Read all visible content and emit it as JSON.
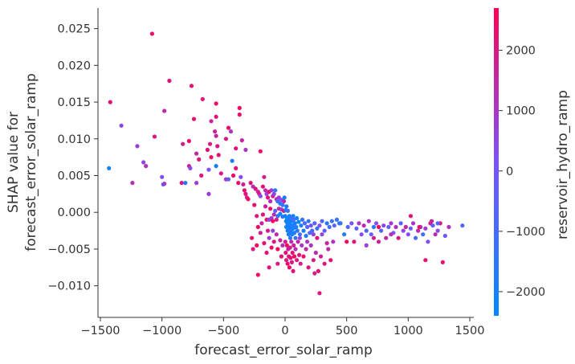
{
  "chart_data": {
    "type": "scatter",
    "title": "",
    "xlabel": "forecast_error_solar_ramp",
    "ylabel_lines": [
      "SHAP value for",
      "forecast_error_solar_ramp"
    ],
    "colorbar_label": "reservoir_hydro_ramp",
    "xlim": [
      -1500,
      1500
    ],
    "ylim": [
      -0.0143,
      0.0278
    ],
    "x_ticks": [
      -1500,
      -1000,
      -500,
      0,
      500,
      1000,
      1500
    ],
    "x_tick_labels": [
      "−1500",
      "−1000",
      "−500",
      "0",
      "500",
      "1000",
      "1500"
    ],
    "y_ticks": [
      -0.01,
      -0.005,
      0.0,
      0.005,
      0.01,
      0.015,
      0.02,
      0.025
    ],
    "y_tick_labels": [
      "−0.010",
      "−0.005",
      "0.000",
      "0.005",
      "0.010",
      "0.015",
      "0.020",
      "0.025"
    ],
    "color_range": [
      -2400,
      2700
    ],
    "color_ticks": [
      -2000,
      -1000,
      0,
      1000,
      2000
    ],
    "color_tick_labels": [
      "−2000",
      "−1000",
      "0",
      "1000",
      "2000"
    ],
    "colors": {
      "low": "#008afb",
      "mid": "#7c52ff",
      "high": "#ff0052",
      "spine": "#333333"
    },
    "grid": false,
    "points": [
      [
        -1080,
        0.0243,
        2300
      ],
      [
        -940,
        0.0179,
        2100
      ],
      [
        -760,
        0.0172,
        2200
      ],
      [
        -670,
        0.0154,
        2000
      ],
      [
        -1420,
        0.015,
        2200
      ],
      [
        -980,
        0.0138,
        1400
      ],
      [
        -560,
        0.0148,
        2400
      ],
      [
        -370,
        0.0142,
        2500
      ],
      [
        -1330,
        0.0118,
        600
      ],
      [
        -1060,
        0.0103,
        2000
      ],
      [
        -740,
        0.0127,
        2300
      ],
      [
        -600,
        0.0124,
        1500
      ],
      [
        -560,
        0.013,
        2200
      ],
      [
        -460,
        0.0115,
        2500
      ],
      [
        -370,
        0.0133,
        2300
      ],
      [
        -1200,
        0.009,
        800
      ],
      [
        -1150,
        0.0068,
        600
      ],
      [
        -1130,
        0.0063,
        1200
      ],
      [
        -1000,
        0.0048,
        200
      ],
      [
        -830,
        0.0093,
        1800
      ],
      [
        -780,
        0.0097,
        2300
      ],
      [
        -720,
        0.008,
        1500
      ],
      [
        -700,
        0.0072,
        2100
      ],
      [
        -630,
        0.0085,
        2300
      ],
      [
        -610,
        0.0093,
        2000
      ],
      [
        -570,
        0.011,
        1700
      ],
      [
        -560,
        0.0104,
        1600
      ],
      [
        -550,
        0.009,
        2000
      ],
      [
        -540,
        0.0078,
        2200
      ],
      [
        -480,
        0.01,
        1900
      ],
      [
        -440,
        0.011,
        1000
      ],
      [
        -400,
        0.0087,
        2100
      ],
      [
        -350,
        0.0098,
        1500
      ],
      [
        -320,
        0.0085,
        1000
      ],
      [
        -200,
        0.0083,
        2400
      ],
      [
        -1430,
        0.006,
        -2100
      ],
      [
        -1240,
        0.004,
        1200
      ],
      [
        -990,
        0.0038,
        -800
      ],
      [
        -980,
        0.0039,
        900
      ],
      [
        -840,
        0.004,
        2000
      ],
      [
        -810,
        0.004,
        -1600
      ],
      [
        -780,
        0.0063,
        1700
      ],
      [
        -770,
        0.006,
        400
      ],
      [
        -720,
        0.004,
        900
      ],
      [
        -680,
        0.005,
        2100
      ],
      [
        -620,
        0.0058,
        200
      ],
      [
        -620,
        0.0025,
        800
      ],
      [
        -600,
        0.0075,
        2400
      ],
      [
        -560,
        0.0063,
        -2000
      ],
      [
        -520,
        0.0053,
        2000
      ],
      [
        -480,
        0.0045,
        1100
      ],
      [
        -460,
        0.0045,
        -500
      ],
      [
        -430,
        0.007,
        -1800
      ],
      [
        -420,
        0.005,
        2500
      ],
      [
        -400,
        0.006,
        2200
      ],
      [
        -380,
        0.004,
        2300
      ],
      [
        -360,
        0.0048,
        300
      ],
      [
        -340,
        0.0038,
        1600
      ],
      [
        -330,
        0.003,
        2400
      ],
      [
        -320,
        0.0025,
        2100
      ],
      [
        -310,
        0.002,
        1800
      ],
      [
        -300,
        0.0018,
        2500
      ],
      [
        -280,
        0.004,
        2200
      ],
      [
        -260,
        0.0035,
        1200
      ],
      [
        -240,
        0.0032,
        2100
      ],
      [
        -220,
        0.0028,
        1600
      ],
      [
        -210,
        0.0025,
        1900
      ],
      [
        -200,
        0.0022,
        500
      ],
      [
        -180,
        0.0035,
        2200
      ],
      [
        -170,
        0.0048,
        1800
      ],
      [
        -160,
        0.003,
        1400
      ],
      [
        -150,
        0.0025,
        700
      ],
      [
        -140,
        0.002,
        2100
      ],
      [
        -130,
        0.0028,
        2300
      ],
      [
        -120,
        0.0015,
        1200
      ],
      [
        -110,
        0.003,
        700
      ],
      [
        -100,
        0.0022,
        1800
      ],
      [
        -90,
        0.0025,
        600
      ],
      [
        -80,
        0.003,
        -1400
      ],
      [
        -70,
        0.0018,
        1200
      ],
      [
        -60,
        0.0015,
        -900
      ],
      [
        -50,
        0.002,
        900
      ],
      [
        -40,
        0.0012,
        -1800
      ],
      [
        -30,
        0.0017,
        300
      ],
      [
        -20,
        0.001,
        -1300
      ],
      [
        -10,
        0.0015,
        1500
      ],
      [
        -5,
        0.002,
        -2000
      ],
      [
        -250,
        0.001,
        2200
      ],
      [
        -230,
        -0.0005,
        2000
      ],
      [
        -220,
        -0.002,
        2400
      ],
      [
        -190,
        -0.0015,
        1500
      ],
      [
        -180,
        -0.0003,
        2100
      ],
      [
        -160,
        0.0008,
        1700
      ],
      [
        -150,
        -0.001,
        2300
      ],
      [
        -140,
        -0.0025,
        1900
      ],
      [
        -130,
        -0.001,
        600
      ],
      [
        -120,
        0.0005,
        2300
      ],
      [
        -110,
        -0.0008,
        1000
      ],
      [
        -100,
        -0.0012,
        2500
      ],
      [
        -90,
        -0.0003,
        1300
      ],
      [
        -80,
        0.0002,
        -400
      ],
      [
        -70,
        -0.001,
        2000
      ],
      [
        -60,
        -0.0005,
        -1100
      ],
      [
        -50,
        0.0005,
        1600
      ],
      [
        -40,
        -0.0002,
        -2000
      ],
      [
        -30,
        0.0004,
        800
      ],
      [
        -20,
        -0.0006,
        -1600
      ],
      [
        -10,
        0.0002,
        2200
      ],
      [
        -270,
        -0.0035,
        2200
      ],
      [
        -260,
        -0.005,
        2000
      ],
      [
        -230,
        -0.0045,
        2500
      ],
      [
        -200,
        -0.0028,
        1800
      ],
      [
        -170,
        -0.0042,
        2300
      ],
      [
        -150,
        -0.0055,
        2100
      ],
      [
        -130,
        -0.0035,
        900
      ],
      [
        -110,
        -0.0048,
        2400
      ],
      [
        -100,
        -0.0025,
        700
      ],
      [
        -90,
        -0.004,
        2000
      ],
      [
        -70,
        -0.003,
        1400
      ],
      [
        -60,
        -0.005,
        2500
      ],
      [
        -40,
        -0.0038,
        1700
      ],
      [
        -30,
        -0.006,
        2200
      ],
      [
        -20,
        -0.0045,
        1200
      ],
      [
        -130,
        -0.0075,
        2100
      ],
      [
        -60,
        -0.007,
        1900
      ],
      [
        -220,
        -0.0085,
        2300
      ],
      [
        0,
        -0.0005,
        -2000
      ],
      [
        5,
        0.0003,
        -2200
      ],
      [
        8,
        -0.0012,
        -1900
      ],
      [
        10,
        -0.002,
        -2100
      ],
      [
        12,
        0.0008,
        -1500
      ],
      [
        15,
        -0.0008,
        -2300
      ],
      [
        18,
        -0.0015,
        -1800
      ],
      [
        20,
        -0.0025,
        -2000
      ],
      [
        22,
        0.0002,
        -1200
      ],
      [
        25,
        -0.0018,
        -2200
      ],
      [
        28,
        -0.003,
        -1700
      ],
      [
        30,
        -0.001,
        -2000
      ],
      [
        32,
        -0.0022,
        -1400
      ],
      [
        35,
        -0.0005,
        -2100
      ],
      [
        38,
        -0.0028,
        -1900
      ],
      [
        40,
        -0.0015,
        -2300
      ],
      [
        42,
        -0.0035,
        -1600
      ],
      [
        45,
        -0.002,
        -2000
      ],
      [
        48,
        -0.0008,
        -1100
      ],
      [
        50,
        -0.0025,
        -1800
      ],
      [
        55,
        -0.0012,
        -2200
      ],
      [
        58,
        -0.003,
        -2000
      ],
      [
        60,
        -0.0018,
        -1500
      ],
      [
        65,
        -0.0005,
        -1900
      ],
      [
        68,
        -0.0022,
        -2100
      ],
      [
        70,
        -0.001,
        -700
      ],
      [
        75,
        -0.0028,
        -1700
      ],
      [
        80,
        -0.0015,
        -2000
      ],
      [
        85,
        -0.0035,
        -1300
      ],
      [
        90,
        -0.002,
        -1800
      ],
      [
        95,
        -0.0008,
        -2200
      ],
      [
        100,
        -0.0025,
        -1600
      ],
      [
        110,
        -0.0013,
        -1900
      ],
      [
        120,
        -0.003,
        -1100
      ],
      [
        130,
        -0.0018,
        -2000
      ],
      [
        140,
        -0.001,
        -1400
      ],
      [
        150,
        -0.0025,
        -1800
      ],
      [
        160,
        -0.0015,
        -900
      ],
      [
        170,
        -0.0032,
        -1500
      ],
      [
        180,
        -0.002,
        -600
      ],
      [
        190,
        -0.0012,
        -1200
      ],
      [
        200,
        -0.0028,
        -800
      ],
      [
        210,
        -0.0018,
        -300
      ],
      [
        220,
        -0.0025,
        -1000
      ],
      [
        240,
        -0.0015,
        -500
      ],
      [
        260,
        -0.0022,
        -1200
      ],
      [
        280,
        -0.0018,
        200
      ],
      [
        300,
        -0.0012,
        -800
      ],
      [
        320,
        -0.0025,
        -400
      ],
      [
        340,
        -0.0015,
        -1600
      ],
      [
        360,
        -0.002,
        -900
      ],
      [
        380,
        -0.0012,
        -1200
      ],
      [
        400,
        -0.0018,
        -700
      ],
      [
        420,
        -0.001,
        -1400
      ],
      [
        440,
        -0.0015,
        -1000
      ],
      [
        2,
        -0.004,
        1800
      ],
      [
        5,
        -0.0055,
        2200
      ],
      [
        10,
        -0.0065,
        2000
      ],
      [
        15,
        -0.0045,
        2400
      ],
      [
        20,
        -0.007,
        2300
      ],
      [
        25,
        -0.005,
        1600
      ],
      [
        30,
        -0.006,
        2100
      ],
      [
        35,
        -0.0075,
        2500
      ],
      [
        40,
        -0.0048,
        1900
      ],
      [
        45,
        -0.0062,
        2200
      ],
      [
        50,
        -0.004,
        1400
      ],
      [
        55,
        -0.0068,
        2000
      ],
      [
        60,
        -0.0055,
        2300
      ],
      [
        65,
        -0.008,
        2100
      ],
      [
        70,
        -0.0045,
        1700
      ],
      [
        75,
        -0.006,
        2400
      ],
      [
        85,
        -0.005,
        1200
      ],
      [
        95,
        -0.0065,
        2000
      ],
      [
        105,
        -0.004,
        1600
      ],
      [
        115,
        -0.0058,
        2200
      ],
      [
        125,
        -0.007,
        1800
      ],
      [
        135,
        -0.0045,
        900
      ],
      [
        150,
        -0.006,
        2300
      ],
      [
        170,
        -0.005,
        1500
      ],
      [
        190,
        -0.0075,
        2100
      ],
      [
        210,
        -0.0045,
        1100
      ],
      [
        230,
        -0.0065,
        1900
      ],
      [
        250,
        -0.0055,
        1300
      ],
      [
        270,
        -0.008,
        2200
      ],
      [
        290,
        -0.006,
        1700
      ],
      [
        320,
        -0.007,
        2000
      ],
      [
        350,
        -0.005,
        1400
      ],
      [
        370,
        -0.0065,
        2200
      ],
      [
        390,
        -0.004,
        1200
      ],
      [
        280,
        -0.011,
        2000
      ],
      [
        240,
        -0.0083,
        1800
      ],
      [
        120,
        -0.0035,
        500
      ],
      [
        180,
        -0.004,
        1000
      ],
      [
        230,
        -0.003,
        700
      ],
      [
        260,
        -0.0035,
        2100
      ],
      [
        300,
        -0.003,
        600
      ],
      [
        340,
        -0.0042,
        1600
      ],
      [
        450,
        -0.0015,
        -1400
      ],
      [
        480,
        -0.003,
        -1800
      ],
      [
        510,
        -0.002,
        -600
      ],
      [
        540,
        -0.0015,
        200
      ],
      [
        560,
        -0.004,
        2200
      ],
      [
        580,
        -0.0022,
        -400
      ],
      [
        600,
        -0.0015,
        900
      ],
      [
        620,
        -0.003,
        300
      ],
      [
        640,
        -0.0018,
        1500
      ],
      [
        660,
        -0.0025,
        -900
      ],
      [
        680,
        -0.0012,
        1100
      ],
      [
        700,
        -0.003,
        -200
      ],
      [
        720,
        -0.002,
        -1600
      ],
      [
        740,
        -0.0015,
        400
      ],
      [
        760,
        -0.004,
        1700
      ],
      [
        780,
        -0.0025,
        -700
      ],
      [
        800,
        -0.0018,
        500
      ],
      [
        820,
        -0.0035,
        1400
      ],
      [
        840,
        -0.002,
        -300
      ],
      [
        860,
        -0.0015,
        900
      ],
      [
        880,
        -0.0028,
        200
      ],
      [
        900,
        -0.002,
        1200
      ],
      [
        920,
        -0.0035,
        2100
      ],
      [
        940,
        -0.0015,
        -500
      ],
      [
        960,
        -0.0025,
        600
      ],
      [
        980,
        -0.002,
        1600
      ],
      [
        1000,
        -0.003,
        300
      ],
      [
        1020,
        -0.0022,
        -200
      ],
      [
        1040,
        -0.0015,
        1000
      ],
      [
        1060,
        -0.0035,
        -800
      ],
      [
        1080,
        -0.0025,
        1500
      ],
      [
        1100,
        -0.002,
        400
      ],
      [
        1120,
        -0.003,
        -1100
      ],
      [
        1140,
        -0.0022,
        900
      ],
      [
        1160,
        -0.004,
        200
      ],
      [
        1180,
        -0.0015,
        1700
      ],
      [
        1200,
        -0.0018,
        -400
      ],
      [
        1220,
        -0.003,
        1300
      ],
      [
        1240,
        -0.0025,
        500
      ],
      [
        1260,
        -0.0015,
        2000
      ],
      [
        1300,
        -0.0032,
        -100
      ],
      [
        1330,
        -0.002,
        1200
      ],
      [
        1440,
        -0.0018,
        -900
      ],
      [
        1020,
        -0.0005,
        2200
      ],
      [
        660,
        -0.0045,
        800
      ],
      [
        720,
        -0.0035,
        1800
      ],
      [
        500,
        -0.004,
        2500
      ],
      [
        1140,
        -0.0065,
        2200
      ],
      [
        1280,
        -0.0068,
        2300
      ],
      [
        1190,
        -0.0012,
        1600
      ],
      [
        1240,
        -0.0015,
        -600
      ],
      [
        760,
        -0.002,
        2400
      ],
      [
        860,
        -0.003,
        1200
      ],
      [
        1090,
        -0.002,
        2300
      ]
    ]
  }
}
